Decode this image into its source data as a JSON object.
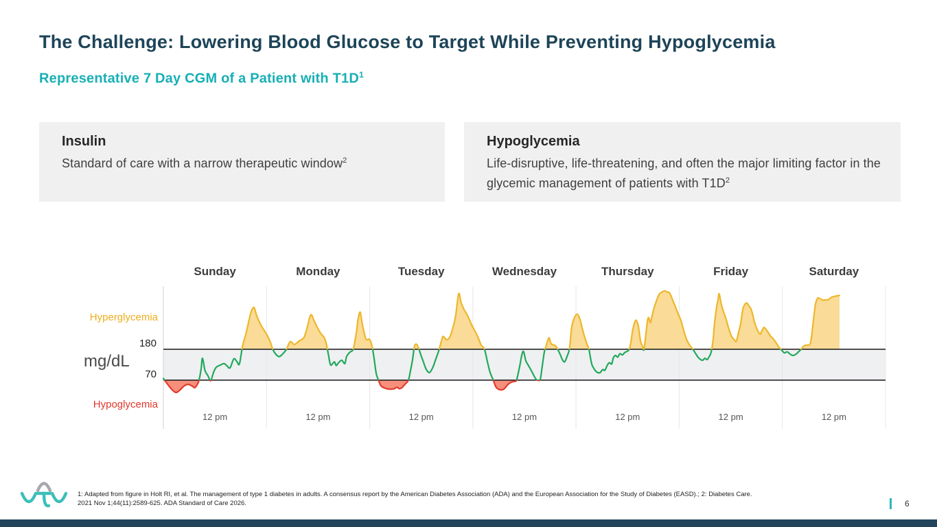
{
  "header": {
    "title": "The Challenge: Lowering Blood Glucose to Target While Preventing Hypoglycemia",
    "subtitle": "Representative 7 Day CGM of a Patient with T1D",
    "subtitle_sup": "1"
  },
  "cards": [
    {
      "title": "Insulin",
      "body": "Standard of care with a narrow therapeutic window",
      "body_sup": "2"
    },
    {
      "title": "Hypoglycemia",
      "body": "Life-disruptive, life-threatening, and often the major limiting factor in the glycemic management of patients with T1D",
      "body_sup": "2"
    }
  ],
  "chart_data": {
    "type": "area",
    "title": "Representative 7 Day CGM of a Patient with T1D",
    "ylabel": "mg/dL",
    "x_unit": "hours",
    "x_total_hours": 168,
    "days": [
      "Sunday",
      "Monday",
      "Tuesday",
      "Wednesday",
      "Thursday",
      "Friday",
      "Saturday"
    ],
    "x_tick_label": "12 pm",
    "thresholds": {
      "high": 180,
      "low": 70
    },
    "zone_labels": {
      "high": "Hyperglycemia",
      "low": "Hypoglycemia"
    },
    "grid": "vertical day separators",
    "legend_position": "left zone labels",
    "colors": {
      "in_range_line": "#21a85c",
      "high_line": "#edb72b",
      "high_fill": "#fadb97",
      "low_line": "#e33a2c",
      "low_fill": "#f68f7b",
      "band": "#eff0f2",
      "grid": "#e6e7e9",
      "axis": "#cfd2d4",
      "threshold": "#161616"
    },
    "series": [
      {
        "name": "glucose_mgdl",
        "points": [
          [
            0,
            76
          ],
          [
            1,
            55
          ],
          [
            1.9,
            38
          ],
          [
            2.9,
            26
          ],
          [
            3.8,
            34
          ],
          [
            4.8,
            49
          ],
          [
            5.7,
            55
          ],
          [
            6.7,
            49
          ],
          [
            7.3,
            43
          ],
          [
            7.8,
            52
          ],
          [
            8.3,
            70
          ],
          [
            8.8,
            112
          ],
          [
            9.1,
            148
          ],
          [
            9.7,
            104
          ],
          [
            10.4,
            85
          ],
          [
            11,
            68
          ],
          [
            11.7,
            99
          ],
          [
            12.3,
            116
          ],
          [
            13.3,
            124
          ],
          [
            14.1,
            129
          ],
          [
            14.8,
            121
          ],
          [
            15.5,
            114
          ],
          [
            16.4,
            146
          ],
          [
            17.1,
            136
          ],
          [
            17.7,
            128
          ],
          [
            18.4,
            190
          ],
          [
            19.2,
            235
          ],
          [
            19.8,
            275
          ],
          [
            20.4,
            312
          ],
          [
            21.1,
            329
          ],
          [
            21.7,
            300
          ],
          [
            22.4,
            275
          ],
          [
            23,
            258
          ],
          [
            23.6,
            244
          ],
          [
            24.3,
            225
          ],
          [
            24.9,
            205
          ],
          [
            25.5,
            178
          ],
          [
            26.3,
            160
          ],
          [
            27,
            154
          ],
          [
            27.8,
            164
          ],
          [
            28.6,
            179
          ],
          [
            29.5,
            207
          ],
          [
            30.5,
            197
          ],
          [
            31.6,
            210
          ],
          [
            32.7,
            222
          ],
          [
            33.5,
            260
          ],
          [
            34.3,
            303
          ],
          [
            35.1,
            280
          ],
          [
            35.9,
            255
          ],
          [
            36.7,
            235
          ],
          [
            37.4,
            222
          ],
          [
            37.9,
            200
          ],
          [
            38.4,
            160
          ],
          [
            38.8,
            128
          ],
          [
            39.1,
            124
          ],
          [
            39.8,
            135
          ],
          [
            40.2,
            122
          ],
          [
            40.7,
            131
          ],
          [
            41.5,
            141
          ],
          [
            42.2,
            129
          ],
          [
            42.6,
            153
          ],
          [
            43.1,
            165
          ],
          [
            43.6,
            172
          ],
          [
            44.2,
            182
          ],
          [
            44.9,
            240
          ],
          [
            45.3,
            288
          ],
          [
            45.8,
            312
          ],
          [
            46.3,
            268
          ],
          [
            47,
            222
          ],
          [
            47.4,
            214
          ],
          [
            47.9,
            216
          ],
          [
            48.4,
            200
          ],
          [
            48.9,
            160
          ],
          [
            49.5,
            95
          ],
          [
            50,
            72
          ],
          [
            50.6,
            50
          ],
          [
            51.3,
            43
          ],
          [
            52.1,
            39
          ],
          [
            53,
            38
          ],
          [
            53.8,
            40
          ],
          [
            54.3,
            45
          ],
          [
            54.8,
            40
          ],
          [
            55.4,
            42
          ],
          [
            56.2,
            55
          ],
          [
            57,
            70
          ],
          [
            57.5,
            105
          ],
          [
            58,
            146
          ],
          [
            58.4,
            190
          ],
          [
            58.9,
            198
          ],
          [
            59.4,
            183
          ],
          [
            59.9,
            160
          ],
          [
            60.5,
            135
          ],
          [
            61.1,
            110
          ],
          [
            61.9,
            97
          ],
          [
            62.7,
            116
          ],
          [
            63.4,
            146
          ],
          [
            64,
            172
          ],
          [
            64.7,
            210
          ],
          [
            65.1,
            226
          ],
          [
            65.9,
            214
          ],
          [
            66.7,
            226
          ],
          [
            67.5,
            265
          ],
          [
            68,
            300
          ],
          [
            68.7,
            378
          ],
          [
            69.3,
            345
          ],
          [
            70,
            320
          ],
          [
            70.6,
            305
          ],
          [
            71.9,
            262
          ],
          [
            73,
            230
          ],
          [
            73.9,
            196
          ],
          [
            74.7,
            180
          ],
          [
            75.4,
            135
          ],
          [
            76,
            98
          ],
          [
            76.8,
            68
          ],
          [
            77.4,
            45
          ],
          [
            78.3,
            36
          ],
          [
            79.2,
            38
          ],
          [
            80.2,
            55
          ],
          [
            81,
            63
          ],
          [
            81.8,
            66
          ],
          [
            82.2,
            72
          ],
          [
            82.9,
            120
          ],
          [
            83.4,
            160
          ],
          [
            83.8,
            172
          ],
          [
            84.3,
            140
          ],
          [
            84.9,
            123
          ],
          [
            85.6,
            104
          ],
          [
            86.2,
            86
          ],
          [
            86.7,
            73
          ],
          [
            87.2,
            69
          ],
          [
            87.7,
            74
          ],
          [
            88.1,
            115
          ],
          [
            88.6,
            168
          ],
          [
            89.1,
            195
          ],
          [
            89.7,
            221
          ],
          [
            90.2,
            200
          ],
          [
            90.9,
            195
          ],
          [
            91.3,
            191
          ],
          [
            91.8,
            178
          ],
          [
            92.3,
            162
          ],
          [
            92.9,
            141
          ],
          [
            93.4,
            136
          ],
          [
            94,
            158
          ],
          [
            94.5,
            185
          ],
          [
            95,
            260
          ],
          [
            95.7,
            295
          ],
          [
            96.3,
            305
          ],
          [
            96.9,
            288
          ],
          [
            97.7,
            240
          ],
          [
            98.4,
            205
          ],
          [
            99,
            180
          ],
          [
            99.3,
            155
          ],
          [
            99.7,
            125
          ],
          [
            100.3,
            108
          ],
          [
            100.9,
            98
          ],
          [
            101.6,
            97
          ],
          [
            102.2,
            108
          ],
          [
            102.7,
            105
          ],
          [
            103.3,
            124
          ],
          [
            103.8,
            132
          ],
          [
            104.3,
            128
          ],
          [
            104.7,
            150
          ],
          [
            105.2,
            158
          ],
          [
            105.7,
            152
          ],
          [
            106.2,
            164
          ],
          [
            106.8,
            160
          ],
          [
            107.3,
            168
          ],
          [
            107.8,
            172
          ],
          [
            108.3,
            178
          ],
          [
            108.7,
            200
          ],
          [
            109.2,
            250
          ],
          [
            109.7,
            278
          ],
          [
            110,
            283
          ],
          [
            110.5,
            263
          ],
          [
            111,
            210
          ],
          [
            111.5,
            190
          ],
          [
            111.8,
            179
          ],
          [
            112.3,
            240
          ],
          [
            112.6,
            280
          ],
          [
            112.9,
            293
          ],
          [
            113.3,
            275
          ],
          [
            113.7,
            300
          ],
          [
            114.2,
            330
          ],
          [
            114.7,
            352
          ],
          [
            115.3,
            375
          ],
          [
            115.9,
            383
          ],
          [
            116.6,
            388
          ],
          [
            117.2,
            384
          ],
          [
            117.8,
            380
          ],
          [
            118.5,
            355
          ],
          [
            119.1,
            332
          ],
          [
            119.8,
            305
          ],
          [
            120.4,
            283
          ],
          [
            121,
            250
          ],
          [
            121.7,
            216
          ],
          [
            122.3,
            198
          ],
          [
            123,
            184
          ],
          [
            123.6,
            170
          ],
          [
            124.1,
            158
          ],
          [
            124.5,
            150
          ],
          [
            125,
            143
          ],
          [
            125.5,
            141
          ],
          [
            126,
            148
          ],
          [
            126.5,
            143
          ],
          [
            126.9,
            152
          ],
          [
            127.4,
            168
          ],
          [
            127.9,
            215
          ],
          [
            128.2,
            270
          ],
          [
            128.7,
            330
          ],
          [
            129,
            352
          ],
          [
            129.3,
            378
          ],
          [
            129.8,
            340
          ],
          [
            130.4,
            310
          ],
          [
            130.9,
            288
          ],
          [
            131.6,
            250
          ],
          [
            132.2,
            226
          ],
          [
            132.8,
            214
          ],
          [
            133.3,
            209
          ],
          [
            133.8,
            240
          ],
          [
            134.3,
            272
          ],
          [
            134.8,
            322
          ],
          [
            135.2,
            338
          ],
          [
            135.7,
            345
          ],
          [
            136.2,
            335
          ],
          [
            136.8,
            320
          ],
          [
            137.5,
            278
          ],
          [
            138.1,
            252
          ],
          [
            138.8,
            234
          ],
          [
            139.2,
            245
          ],
          [
            139.7,
            258
          ],
          [
            140.2,
            251
          ],
          [
            140.7,
            240
          ],
          [
            141.3,
            226
          ],
          [
            142,
            215
          ],
          [
            142.6,
            202
          ],
          [
            143.2,
            188
          ],
          [
            143.9,
            176
          ],
          [
            144.5,
            167
          ],
          [
            145.1,
            171
          ],
          [
            145.8,
            163
          ],
          [
            146.4,
            158
          ],
          [
            147.1,
            162
          ],
          [
            147.7,
            170
          ],
          [
            148.3,
            179
          ],
          [
            149,
            192
          ],
          [
            149.6,
            195
          ],
          [
            150.3,
            196
          ],
          [
            150.7,
            215
          ],
          [
            151.2,
            280
          ],
          [
            151.7,
            340
          ],
          [
            152.2,
            362
          ],
          [
            152.8,
            360
          ],
          [
            153.4,
            355
          ],
          [
            154.1,
            356
          ],
          [
            154.7,
            357
          ],
          [
            155.4,
            365
          ],
          [
            156,
            368
          ],
          [
            156.6,
            370
          ],
          [
            157.3,
            372
          ]
        ]
      }
    ]
  },
  "footer": {
    "citation_lines": [
      "1: Adapted from figure in Holt RI, et al. The management of type 1 diabetes in adults. A consensus report by the American Diabetes Association (ADA) and the European Association for the Study of Diabetes (EASD).; 2: Diabetes Care.",
      "2021 Nov 1;44(11):2589-625. ADA Standard of Care 2026."
    ],
    "page_number": "6",
    "logo_name": "vtv-therapeutics-logo",
    "accent_teal": "#2cb5bc",
    "bottom_bar_color": "#23455c"
  }
}
